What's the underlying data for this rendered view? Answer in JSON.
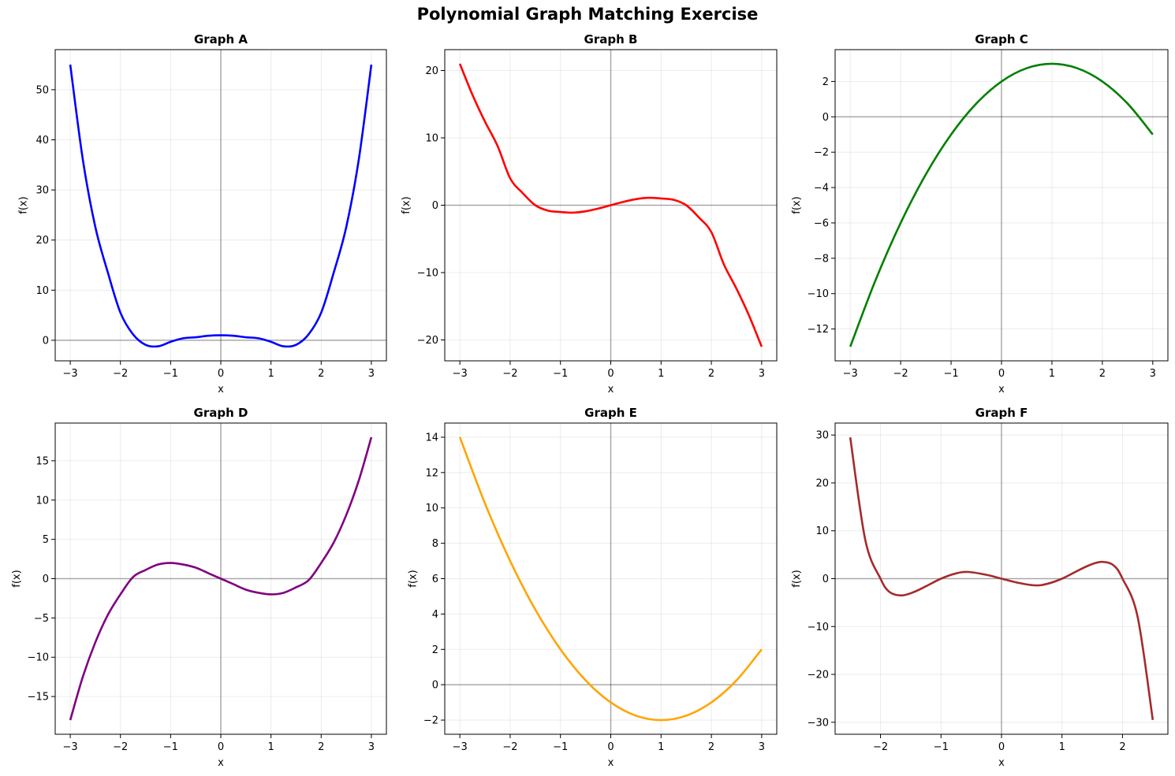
{
  "figure": {
    "title": "Polynomial Graph Matching Exercise"
  },
  "chart_data": [
    {
      "type": "line",
      "title": "Graph A",
      "xlabel": "x",
      "ylabel": "f(x)",
      "color": "#0000ff",
      "xlim": [
        -3.3,
        3.3
      ],
      "ylim": [
        -4.1,
        58.0
      ],
      "xticks": [
        -3,
        -2,
        -1,
        0,
        1,
        2,
        3
      ],
      "yticks": [
        0,
        10,
        20,
        30,
        40,
        50
      ],
      "grid": true,
      "x": [
        -3,
        -2.75,
        -2.5,
        -2.25,
        -2,
        -1.75,
        -1.5,
        -1.25,
        -1,
        -0.75,
        -0.5,
        -0.25,
        0,
        0.25,
        0.5,
        0.75,
        1,
        1.25,
        1.5,
        1.75,
        2,
        2.25,
        2.5,
        2.75,
        3
      ],
      "y": [
        55,
        36.1,
        22.6,
        13.5,
        5.5,
        1.2,
        -0.9,
        -1.2,
        -0.3,
        0.4,
        0.6,
        0.9,
        1,
        0.9,
        0.6,
        0.4,
        -0.3,
        -1.2,
        -0.9,
        1.2,
        5.5,
        13.5,
        22.6,
        36.1,
        55
      ]
    },
    {
      "type": "line",
      "title": "Graph B",
      "xlabel": "x",
      "ylabel": "f(x)",
      "color": "#ff0000",
      "xlim": [
        -3.3,
        3.3
      ],
      "ylim": [
        -23.1,
        23.1
      ],
      "xticks": [
        -3,
        -2,
        -1,
        0,
        1,
        2,
        3
      ],
      "yticks": [
        -20,
        -10,
        0,
        10,
        20
      ],
      "grid": true,
      "x": [
        -3,
        -2.75,
        -2.5,
        -2.25,
        -2,
        -1.75,
        -1.5,
        -1.25,
        -1,
        -0.75,
        -0.5,
        -0.25,
        0,
        0.25,
        0.5,
        0.75,
        1,
        1.25,
        1.5,
        1.75,
        2,
        2.25,
        2.5,
        2.75,
        3
      ],
      "y": [
        21,
        16.4,
        12.4,
        8.8,
        4,
        1.8,
        0,
        -0.8,
        -1,
        -1.1,
        -0.9,
        -0.5,
        0,
        0.5,
        0.9,
        1.1,
        1,
        0.8,
        0,
        -1.8,
        -4,
        -8.8,
        -12.4,
        -16.4,
        -21
      ]
    },
    {
      "type": "line",
      "title": "Graph C",
      "xlabel": "x",
      "ylabel": "f(x)",
      "color": "#008000",
      "xlim": [
        -3.3,
        3.3
      ],
      "ylim": [
        -13.8,
        3.8
      ],
      "xticks": [
        -3,
        -2,
        -1,
        0,
        1,
        2,
        3
      ],
      "yticks": [
        -12,
        -10,
        -8,
        -6,
        -4,
        -2,
        0,
        2
      ],
      "grid": true,
      "x": [
        -3,
        -2.5,
        -2,
        -1.5,
        -1,
        -0.5,
        0,
        0.5,
        1,
        1.5,
        2,
        2.5,
        3
      ],
      "y": [
        -13,
        -9.25,
        -6,
        -3.25,
        -1,
        0.75,
        2,
        2.75,
        3,
        2.75,
        2,
        0.75,
        -1
      ]
    },
    {
      "type": "line",
      "title": "Graph D",
      "xlabel": "x",
      "ylabel": "f(x)",
      "color": "#800080",
      "xlim": [
        -3.3,
        3.3
      ],
      "ylim": [
        -19.8,
        19.8
      ],
      "xticks": [
        -3,
        -2,
        -1,
        0,
        1,
        2,
        3
      ],
      "yticks": [
        -15,
        -10,
        -5,
        0,
        5,
        10,
        15
      ],
      "grid": true,
      "x": [
        -3,
        -2.75,
        -2.5,
        -2.25,
        -2,
        -1.75,
        -1.5,
        -1.25,
        -1,
        -0.75,
        -0.5,
        -0.25,
        0,
        0.25,
        0.5,
        0.75,
        1,
        1.25,
        1.5,
        1.75,
        2,
        2.25,
        2.5,
        2.75,
        3
      ],
      "y": [
        -18,
        -12.5,
        -8.1,
        -4.6,
        -2,
        0.2,
        1.1,
        1.8,
        2,
        1.8,
        1.4,
        0.7,
        0,
        -0.7,
        -1.4,
        -1.8,
        -2,
        -1.8,
        -1.1,
        -0.2,
        2,
        4.6,
        8.1,
        12.5,
        18
      ]
    },
    {
      "type": "line",
      "title": "Graph E",
      "xlabel": "x",
      "ylabel": "f(x)",
      "color": "#ffa500",
      "xlim": [
        -3.3,
        3.3
      ],
      "ylim": [
        -2.8,
        14.8
      ],
      "xticks": [
        -3,
        -2,
        -1,
        0,
        1,
        2,
        3
      ],
      "yticks": [
        -2,
        0,
        2,
        4,
        6,
        8,
        10,
        12,
        14
      ],
      "grid": true,
      "x": [
        -3,
        -2.5,
        -2,
        -1.5,
        -1,
        -0.5,
        0,
        0.5,
        1,
        1.5,
        2,
        2.5,
        3
      ],
      "y": [
        14,
        10.25,
        7,
        4.25,
        2,
        0.25,
        -1,
        -1.75,
        -2,
        -1.75,
        -1,
        0.25,
        2
      ]
    },
    {
      "type": "line",
      "title": "Graph F",
      "xlabel": "x",
      "ylabel": "f(x)",
      "color": "#a52a2a",
      "xlim": [
        -2.75,
        2.75
      ],
      "ylim": [
        -32.5,
        32.5
      ],
      "xticks": [
        -2,
        -1,
        0,
        1,
        2
      ],
      "yticks": [
        -30,
        -20,
        -10,
        0,
        10,
        20,
        30
      ],
      "grid": true,
      "x": [
        -2.5,
        -2.25,
        -2,
        -1.85,
        -1.65,
        -1.45,
        -1.25,
        -1,
        -0.75,
        -0.55,
        -0.25,
        0,
        0.25,
        0.55,
        0.75,
        1,
        1.25,
        1.45,
        1.65,
        1.85,
        2,
        2.25,
        2.5
      ],
      "y": [
        29.5,
        8,
        0,
        -2.8,
        -3.5,
        -2.8,
        -1.6,
        0,
        1.1,
        1.4,
        0.8,
        0,
        -0.8,
        -1.4,
        -1.1,
        0,
        1.6,
        2.8,
        3.5,
        2.8,
        0,
        -8,
        -29.5
      ]
    }
  ]
}
